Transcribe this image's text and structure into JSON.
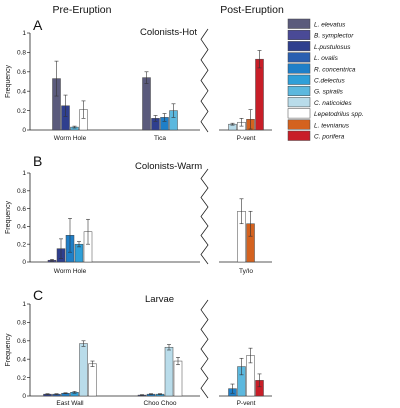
{
  "headers": {
    "pre": "Pre-Eruption",
    "post": "Post-Eruption"
  },
  "legend": [
    {
      "name": "L. elevatus",
      "color": "#5a5a7c"
    },
    {
      "name": "B. symplector",
      "color": "#4a4a96"
    },
    {
      "name": "L.pustulosus",
      "color": "#2f3f8e"
    },
    {
      "name": "L. ovalis",
      "color": "#2a5fb0"
    },
    {
      "name": "R. concentrica",
      "color": "#1f7fc8"
    },
    {
      "name": "C.delectus",
      "color": "#2f9fd8"
    },
    {
      "name": "G. spiralis",
      "color": "#5cb8de"
    },
    {
      "name": "C. naticoides",
      "color": "#b9dcea"
    },
    {
      "name": "Lepetodrilus spp.",
      "color": "#ffffff"
    },
    {
      "name": "L. tevnianus",
      "color": "#d4621f"
    },
    {
      "name": "C. porifera",
      "color": "#c81e28"
    }
  ],
  "chart_data": [
    {
      "type": "bar",
      "panel": "A",
      "title": "Colonists-Hot",
      "ylabel": "Frequency",
      "ylim": [
        0,
        1
      ],
      "yticks": [
        "0",
        "0.2",
        "0.4",
        "0.6",
        "0.8",
        "1"
      ],
      "groups": [
        {
          "site": "Worm Hole",
          "section": "pre",
          "bars": [
            {
              "species": "L. elevatus",
              "value": 0.53,
              "err": 0.18
            },
            {
              "species": "L.pustulosus",
              "value": 0.25,
              "err": 0.11
            },
            {
              "species": "G. spiralis",
              "value": 0.03,
              "err": 0.01
            },
            {
              "species": "Lepetodrilus spp.",
              "value": 0.21,
              "err": 0.09
            }
          ]
        },
        {
          "site": "Tica",
          "section": "pre",
          "bars": [
            {
              "species": "L. elevatus",
              "value": 0.54,
              "err": 0.06
            },
            {
              "species": "L.pustulosus",
              "value": 0.12,
              "err": 0.03
            },
            {
              "species": "R. concentrica",
              "value": 0.13,
              "err": 0.04
            },
            {
              "species": "G. spiralis",
              "value": 0.2,
              "err": 0.07
            }
          ]
        },
        {
          "site": "P-vent",
          "section": "post",
          "bars": [
            {
              "species": "C. naticoides",
              "value": 0.06,
              "err": 0.01
            },
            {
              "species": "Lepetodrilus spp.",
              "value": 0.08,
              "err": 0.04
            },
            {
              "species": "L. tevnianus",
              "value": 0.11,
              "err": 0.1
            },
            {
              "species": "C. porifera",
              "value": 0.73,
              "err": 0.09
            }
          ]
        }
      ]
    },
    {
      "type": "bar",
      "panel": "B",
      "title": "Colonists-Warm",
      "ylabel": "Frequency",
      "ylim": [
        0,
        1
      ],
      "yticks": [
        "0",
        "0.2",
        "0.4",
        "0.6",
        "0.8",
        "1"
      ],
      "groups": [
        {
          "site": "Worm Hole",
          "section": "pre",
          "bars": [
            {
              "species": "B. symplector",
              "value": 0.02,
              "err": 0.01
            },
            {
              "species": "L.pustulosus",
              "value": 0.15,
              "err": 0.11
            },
            {
              "species": "R. concentrica",
              "value": 0.3,
              "err": 0.19
            },
            {
              "species": "C.delectus",
              "value": 0.2,
              "err": 0.03
            },
            {
              "species": "Lepetodrilus spp.",
              "value": 0.34,
              "err": 0.14
            }
          ]
        },
        {
          "site": "",
          "section": "pre",
          "bars": []
        },
        {
          "site": "Ty/Io",
          "section": "post",
          "bars": [
            {
              "species": "Lepetodrilus spp.",
              "value": 0.57,
              "err": 0.14
            },
            {
              "species": "L. tevnianus",
              "value": 0.43,
              "err": 0.14
            }
          ]
        }
      ]
    },
    {
      "type": "bar",
      "panel": "C",
      "title": "Larvae",
      "ylabel": "Frequency",
      "ylim": [
        0,
        1
      ],
      "yticks": [
        "0",
        "0.2",
        "0.4",
        "0.6",
        "0.8",
        "1"
      ],
      "groups": [
        {
          "site": "East Wall",
          "section": "pre",
          "bars": [
            {
              "species": "L.pustulosus",
              "value": 0.02,
              "err": 0.005
            },
            {
              "species": "L. ovalis",
              "value": 0.02,
              "err": 0.005
            },
            {
              "species": "R. concentrica",
              "value": 0.03,
              "err": 0.005
            },
            {
              "species": "C.delectus",
              "value": 0.04,
              "err": 0.01
            },
            {
              "species": "C. naticoides",
              "value": 0.57,
              "err": 0.03
            },
            {
              "species": "Lepetodrilus spp.",
              "value": 0.35,
              "err": 0.03
            }
          ]
        },
        {
          "site": "Choo Choo",
          "section": "pre",
          "bars": [
            {
              "species": "L.pustulosus",
              "value": 0.01,
              "err": 0.005
            },
            {
              "species": "R. concentrica",
              "value": 0.02,
              "err": 0.005
            },
            {
              "species": "C.delectus",
              "value": 0.02,
              "err": 0.005
            },
            {
              "species": "C. naticoides",
              "value": 0.53,
              "err": 0.03
            },
            {
              "species": "Lepetodrilus spp.",
              "value": 0.38,
              "err": 0.04
            }
          ]
        },
        {
          "site": "P-vent",
          "section": "post",
          "bars": [
            {
              "species": "R. concentrica",
              "value": 0.08,
              "err": 0.05
            },
            {
              "species": "G. spiralis",
              "value": 0.32,
              "err": 0.09
            },
            {
              "species": "Lepetodrilus spp.",
              "value": 0.44,
              "err": 0.08
            },
            {
              "species": "C. porifera",
              "value": 0.17,
              "err": 0.07
            }
          ]
        }
      ]
    }
  ]
}
